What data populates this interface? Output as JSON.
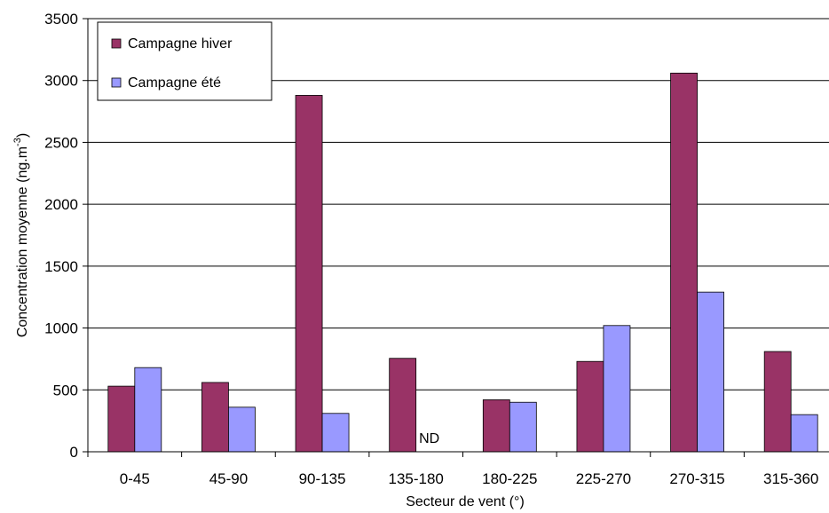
{
  "chart_data": {
    "type": "bar",
    "title": "",
    "xlabel": "Secteur de vent (°)",
    "ylabel": "Concentration moyenne (ng.m",
    "ylabel_superscript": "-3",
    "categories": [
      "0-45",
      "45-90",
      "90-135",
      "135-180",
      "180-225",
      "225-270",
      "270-315",
      "315-360"
    ],
    "series": [
      {
        "name": "Campagne hiver",
        "color": "#993366",
        "values": [
          530,
          560,
          2880,
          755,
          420,
          730,
          3060,
          810
        ]
      },
      {
        "name": "Campagne été",
        "color": "#9999ff",
        "values": [
          680,
          360,
          310,
          null,
          400,
          1020,
          1290,
          300
        ]
      }
    ],
    "missing_label": "ND",
    "ylim": [
      0,
      3500
    ],
    "yticks": [
      0,
      500,
      1000,
      1500,
      2000,
      2500,
      3000,
      3500
    ],
    "grid": true,
    "legend_position": "top-left"
  }
}
